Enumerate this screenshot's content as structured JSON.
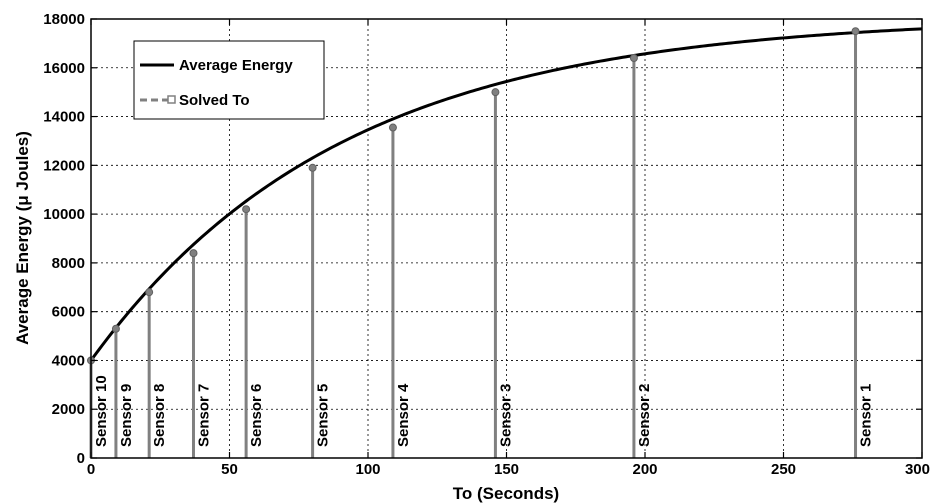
{
  "chart_data": {
    "type": "line",
    "xlabel": "To (Seconds)",
    "ylabel": "Average Energy (μ Joules)",
    "xlim": [
      0,
      300
    ],
    "ylim": [
      0,
      18000
    ],
    "xticks": [
      0,
      50,
      100,
      150,
      200,
      250,
      300
    ],
    "yticks": [
      0,
      2000,
      4000,
      6000,
      8000,
      10000,
      12000,
      14000,
      16000,
      18000
    ],
    "grid": true,
    "legend_position": "top-left",
    "series": [
      {
        "name": "Average Energy",
        "color": "#000000",
        "curve": {
          "asymptote": 18100,
          "start": 4000,
          "time_constant": 90
        }
      },
      {
        "name": "Solved To",
        "color": "#808080",
        "style": "stems"
      }
    ],
    "sensors": [
      {
        "label": "Sensor 10",
        "x": 0,
        "y": 4000
      },
      {
        "label": "Sensor 9",
        "x": 9,
        "y": 5300
      },
      {
        "label": "Sensor 8",
        "x": 21,
        "y": 6800
      },
      {
        "label": "Sensor 7",
        "x": 37,
        "y": 8400
      },
      {
        "label": "Sensor 6",
        "x": 56,
        "y": 10200
      },
      {
        "label": "Sensor 5",
        "x": 80,
        "y": 11900
      },
      {
        "label": "Sensor 4",
        "x": 109,
        "y": 13550
      },
      {
        "label": "Sensor 3",
        "x": 146,
        "y": 15000
      },
      {
        "label": "Sensor 2",
        "x": 196,
        "y": 16400
      },
      {
        "label": "Sensor 1",
        "x": 276,
        "y": 17500
      }
    ]
  }
}
